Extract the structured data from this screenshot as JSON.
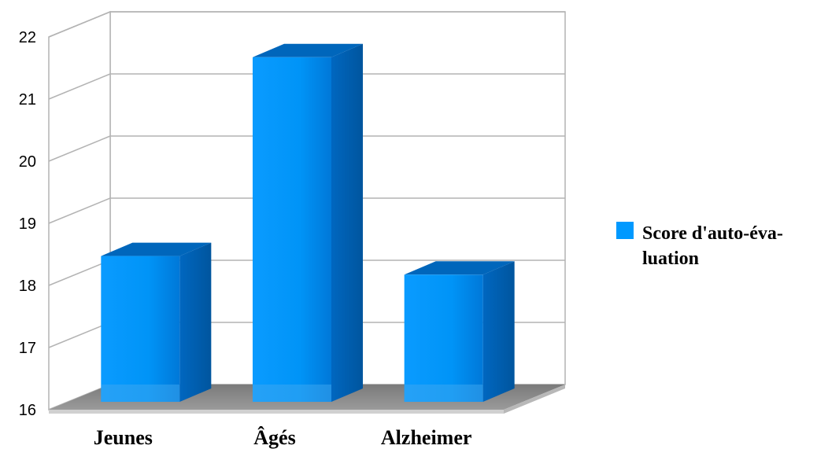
{
  "chart_data": {
    "type": "bar",
    "categories": [
      "Jeunes",
      "Âgés",
      "Alzheimer"
    ],
    "series": [
      {
        "name": "Score d'auto-éva-\nluation",
        "values": [
          18.6,
          21.8,
          18.3
        ]
      }
    ],
    "ylim": [
      16,
      22
    ],
    "yticks": [
      "16",
      "17",
      "18",
      "19",
      "20",
      "21",
      "22"
    ],
    "grid": true,
    "legend_position": "right",
    "colors": {
      "bar": "#0099ff",
      "bar_dark": "#0066bb",
      "floor": "#888888",
      "grid": "#b3b3b3"
    }
  }
}
